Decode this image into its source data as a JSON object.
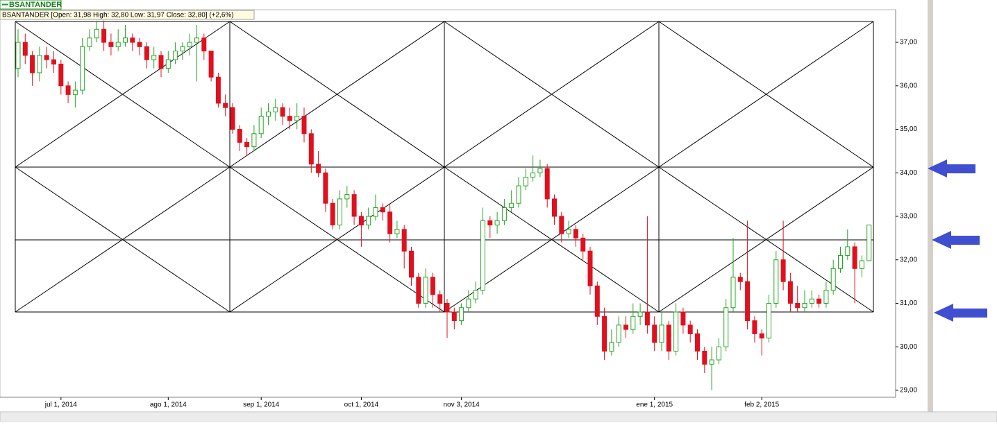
{
  "chart_data": {
    "type": "candlestick",
    "legend": "BSANTANDER",
    "info_label": "BSANTANDER [Open: 31,98  High: 32,80  Low: 31,97  Close: 32,80]  (+2,6%)",
    "up_color": "#22a722",
    "down_color": "#e0101e",
    "categories": [
      null,
      null,
      null,
      null,
      null,
      null,
      "jul 1, 2014",
      null,
      null,
      null,
      null,
      null,
      null,
      null,
      null,
      null,
      null,
      null,
      null,
      null,
      null,
      "ago 1, 2014",
      null,
      null,
      null,
      null,
      null,
      null,
      null,
      null,
      null,
      null,
      null,
      null,
      "sep 1, 2014",
      null,
      null,
      null,
      null,
      null,
      null,
      null,
      null,
      null,
      null,
      null,
      null,
      null,
      "oct 1, 2014",
      null,
      null,
      null,
      null,
      null,
      null,
      null,
      null,
      null,
      null,
      null,
      null,
      null,
      "nov 3, 2014",
      null,
      null,
      null,
      null,
      null,
      null,
      null,
      null,
      null,
      null,
      null,
      null,
      null,
      null,
      null,
      null,
      null,
      null,
      null,
      null,
      null,
      null,
      null,
      null,
      null,
      null,
      "ene 1, 2015",
      null,
      null,
      null,
      null,
      null,
      null,
      null,
      null,
      null,
      null,
      null,
      null,
      null,
      null,
      "feb 2, 2015",
      null,
      null,
      null,
      null,
      null,
      null,
      null,
      null,
      null,
      null,
      null,
      null,
      null,
      null,
      null
    ],
    "open": [
      36.4,
      37.0,
      36.7,
      36.3,
      36.7,
      36.6,
      36.5,
      36.0,
      35.8,
      35.9,
      36.9,
      37.1,
      37.3,
      37.0,
      36.9,
      37.0,
      37.1,
      37.0,
      36.9,
      36.6,
      36.7,
      36.4,
      36.6,
      36.8,
      36.9,
      37.0,
      37.1,
      36.8,
      36.2,
      35.6,
      35.5,
      35.0,
      34.7,
      34.6,
      34.9,
      35.3,
      35.4,
      35.5,
      35.3,
      35.2,
      35.3,
      34.9,
      34.2,
      34.0,
      33.3,
      32.8,
      33.4,
      33.5,
      33.0,
      32.8,
      33.0,
      33.2,
      33.1,
      32.6,
      32.7,
      32.2,
      31.6,
      31.0,
      31.6,
      31.2,
      31.0,
      30.8,
      30.6,
      30.9,
      31.1,
      31.3,
      32.9,
      32.8,
      32.9,
      33.2,
      33.3,
      33.7,
      33.9,
      34.0,
      34.1,
      33.4,
      33.0,
      32.6,
      32.7,
      32.5,
      32.2,
      31.4,
      30.7,
      29.9,
      30.1,
      30.5,
      30.4,
      30.7,
      30.8,
      30.5,
      30.1,
      30.5,
      29.9,
      30.8,
      30.5,
      30.3,
      29.9,
      29.6,
      29.7,
      30.0,
      30.9,
      31.6,
      31.5,
      30.6,
      30.3,
      30.2,
      31.0,
      32.0,
      31.5,
      31.0,
      30.9,
      31.0,
      31.1,
      31.0,
      31.3,
      31.8,
      32.1,
      32.3,
      31.8,
      31.98
    ],
    "high": [
      37.3,
      37.2,
      36.8,
      36.9,
      36.9,
      36.8,
      36.6,
      36.1,
      36.1,
      37.1,
      37.3,
      37.5,
      37.5,
      37.2,
      37.3,
      37.4,
      37.2,
      37.1,
      37.0,
      36.9,
      36.8,
      36.8,
      37.0,
      37.0,
      37.2,
      37.4,
      37.2,
      36.8,
      36.3,
      35.8,
      35.6,
      35.1,
      34.8,
      35.1,
      35.5,
      35.6,
      35.7,
      35.6,
      35.5,
      35.6,
      35.5,
      35.0,
      34.5,
      34.1,
      33.4,
      33.6,
      33.7,
      33.6,
      33.1,
      33.2,
      33.5,
      33.3,
      33.3,
      32.9,
      32.8,
      32.3,
      31.7,
      31.8,
      31.7,
      31.3,
      31.1,
      30.9,
      31.0,
      31.3,
      31.5,
      33.2,
      33.0,
      33.1,
      33.4,
      33.6,
      33.9,
      34.1,
      34.4,
      34.3,
      34.2,
      33.5,
      33.1,
      32.9,
      32.8,
      32.6,
      32.3,
      31.5,
      30.9,
      30.4,
      30.7,
      30.7,
      31.0,
      31.0,
      33.0,
      30.7,
      30.8,
      30.6,
      31.0,
      30.9,
      30.6,
      30.4,
      30.0,
      30.0,
      30.2,
      31.1,
      32.5,
      31.7,
      32.9,
      30.7,
      30.4,
      31.2,
      32.2,
      32.9,
      31.7,
      31.4,
      31.3,
      31.3,
      31.2,
      31.5,
      32.0,
      32.3,
      32.7,
      32.4,
      32.1,
      32.8
    ],
    "low": [
      36.2,
      36.5,
      36.0,
      36.1,
      36.4,
      36.3,
      35.8,
      35.6,
      35.5,
      35.8,
      36.8,
      37.0,
      36.8,
      36.7,
      36.8,
      36.9,
      36.8,
      36.7,
      36.4,
      36.4,
      36.2,
      36.3,
      36.5,
      36.6,
      36.7,
      36.1,
      36.6,
      36.1,
      35.5,
      35.3,
      34.9,
      34.5,
      34.4,
      34.5,
      34.8,
      35.1,
      35.2,
      35.1,
      35.0,
      35.0,
      34.7,
      34.0,
      33.9,
      33.1,
      32.7,
      32.7,
      33.2,
      32.8,
      32.3,
      32.7,
      32.9,
      32.9,
      32.4,
      32.5,
      31.8,
      31.4,
      30.9,
      30.9,
      30.9,
      30.8,
      30.2,
      30.4,
      30.5,
      30.8,
      31.0,
      31.2,
      32.5,
      32.6,
      32.8,
      33.1,
      33.2,
      33.6,
      33.8,
      33.9,
      33.2,
      32.8,
      32.4,
      32.5,
      32.3,
      32.0,
      31.2,
      30.5,
      29.7,
      29.8,
      30.0,
      30.2,
      30.3,
      30.5,
      30.3,
      29.9,
      29.9,
      29.7,
      29.8,
      30.3,
      30.1,
      29.7,
      29.4,
      29.0,
      29.6,
      29.9,
      30.8,
      31.3,
      30.4,
      30.1,
      29.8,
      30.1,
      30.9,
      31.3,
      30.8,
      30.8,
      30.8,
      30.9,
      30.9,
      30.9,
      31.2,
      31.7,
      32.0,
      31.0,
      31.6,
      31.97
    ],
    "close": [
      37.0,
      36.7,
      36.3,
      36.7,
      36.6,
      36.5,
      36.0,
      35.8,
      35.9,
      36.9,
      37.1,
      37.3,
      37.0,
      36.9,
      37.0,
      37.1,
      37.0,
      36.9,
      36.6,
      36.7,
      36.4,
      36.6,
      36.8,
      36.9,
      37.0,
      37.1,
      36.8,
      36.2,
      35.6,
      35.5,
      35.0,
      34.7,
      34.6,
      34.9,
      35.3,
      35.4,
      35.5,
      35.3,
      35.2,
      35.3,
      34.9,
      34.2,
      34.0,
      33.3,
      32.8,
      33.4,
      33.5,
      33.0,
      32.8,
      33.0,
      33.2,
      33.1,
      32.6,
      32.7,
      32.2,
      31.6,
      31.0,
      31.6,
      31.2,
      31.0,
      30.8,
      30.6,
      30.9,
      31.1,
      31.3,
      32.9,
      32.8,
      32.9,
      33.2,
      33.3,
      33.7,
      33.9,
      34.0,
      34.1,
      33.4,
      33.0,
      32.6,
      32.7,
      32.5,
      32.2,
      31.4,
      30.7,
      29.9,
      30.1,
      30.5,
      30.4,
      30.7,
      30.8,
      30.5,
      30.1,
      30.5,
      29.9,
      30.8,
      30.5,
      30.3,
      29.9,
      29.6,
      29.7,
      30.0,
      30.9,
      31.6,
      31.5,
      30.6,
      30.3,
      30.2,
      31.0,
      32.0,
      31.5,
      31.0,
      30.9,
      31.0,
      31.1,
      31.0,
      31.3,
      31.8,
      32.1,
      32.3,
      31.8,
      31.98,
      32.8
    ],
    "ylim": [
      28.84,
      37.75
    ],
    "yticks": [
      {
        "value": 29,
        "label": "29,00"
      },
      {
        "value": 30,
        "label": "30,00"
      },
      {
        "value": 31,
        "label": "31,00"
      },
      {
        "value": 32,
        "label": "32,00"
      },
      {
        "value": 33,
        "label": "33,00"
      },
      {
        "value": 34,
        "label": "34,00"
      },
      {
        "value": 35,
        "label": "35,00"
      },
      {
        "value": 36,
        "label": "36,00"
      },
      {
        "value": 37,
        "label": "37,00"
      }
    ],
    "y_axis_side": "right"
  }
}
